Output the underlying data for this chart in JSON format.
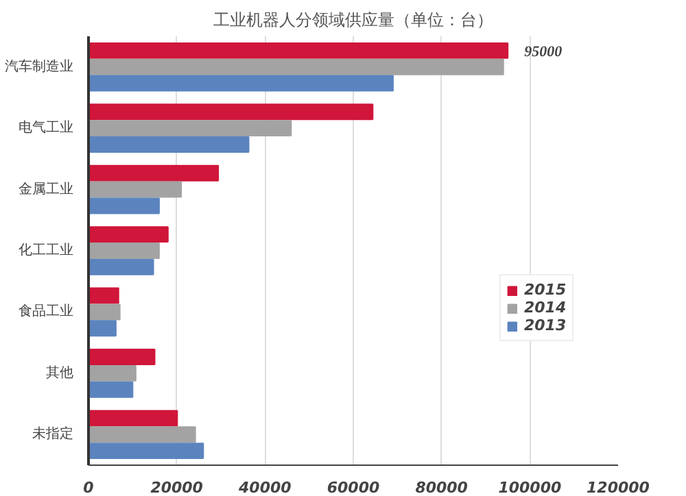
{
  "chart_data": {
    "type": "bar",
    "orientation": "horizontal",
    "title": "工业机器人分领域供应量（单位：台）",
    "categories": [
      "汽车制造业",
      "电气工业",
      "金属工业",
      "化工工业",
      "食品工业",
      "其他",
      "未指定"
    ],
    "series": [
      {
        "name": "2015",
        "color": "#d0163a",
        "values": [
          95000,
          64400,
          29400,
          18000,
          6800,
          15000,
          20100
        ],
        "value_labels": [
          "95000",
          null,
          null,
          null,
          null,
          null,
          null
        ]
      },
      {
        "name": "2014",
        "color": "#a3a3a3",
        "values": [
          94000,
          45900,
          21000,
          16000,
          7100,
          10700,
          24200
        ]
      },
      {
        "name": "2013",
        "color": "#5b84bf",
        "values": [
          69000,
          36300,
          16000,
          14700,
          6200,
          10000,
          26000
        ]
      }
    ],
    "xlim": [
      0,
      120000
    ],
    "xticks": [
      0,
      20000,
      40000,
      60000,
      80000,
      100000,
      120000
    ],
    "grid": "x",
    "legend": "right"
  }
}
